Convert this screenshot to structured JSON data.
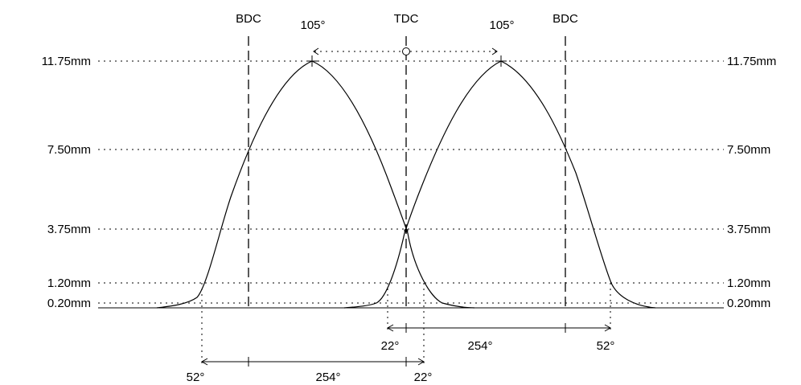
{
  "levels": [
    {
      "label_left": "11.75mm",
      "label_right": "11.75mm",
      "value": 11.75
    },
    {
      "label_left": "7.50mm",
      "label_right": "7.50mm",
      "value": 7.5
    },
    {
      "label_left": "3.75mm",
      "label_right": "3.75mm",
      "value": 3.75
    },
    {
      "label_left": "1.20mm",
      "label_right": "1.20mm",
      "value": 1.2
    },
    {
      "label_left": "0.20mm",
      "label_right": "0.20mm",
      "value": 0.2
    }
  ],
  "markers": {
    "bdc_left": "BDC",
    "tdc": "TDC",
    "bdc_right": "BDC"
  },
  "angles": {
    "peak_left": "105°",
    "peak_right": "105°",
    "bottom_right_start": "22°",
    "bottom_right_duration": "254°",
    "bottom_right_end": "52°",
    "bottom_left_start": "52°",
    "bottom_left_duration": "254°",
    "bottom_left_end": "22°"
  },
  "chart_data": {
    "type": "line",
    "ylim": [
      0,
      11.75
    ],
    "series": [
      {
        "max_lift": 11.75
      },
      {
        "max_lift": 11.75
      }
    ]
  }
}
